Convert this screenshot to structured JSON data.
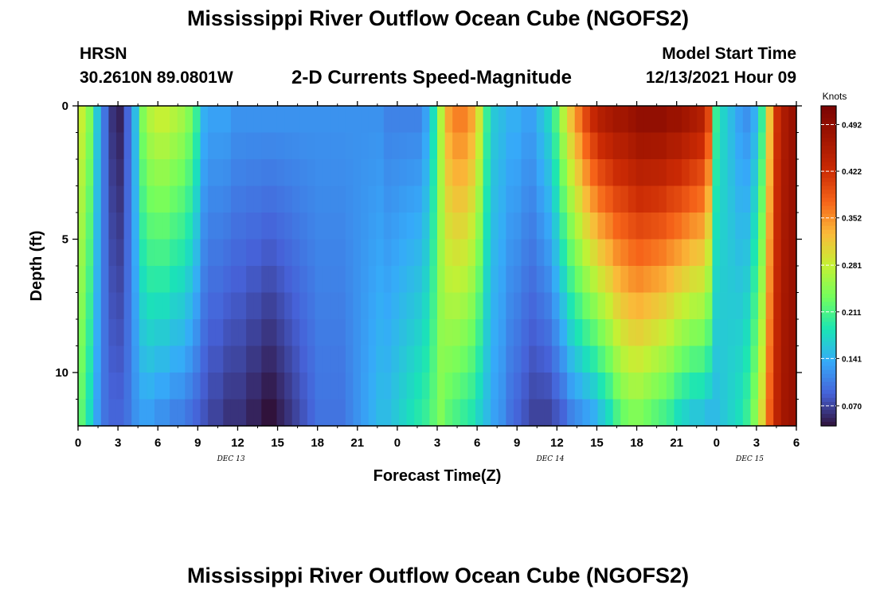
{
  "header": {
    "title": "Mississippi River Outflow Ocean Cube (NGOFS2)",
    "station": "HRSN",
    "latlon": "30.2610N  89.0801W",
    "subtitle": "2-D Currents Speed-Magnitude",
    "model_start_label": "Model Start Time",
    "model_start_value": "12/13/2021 Hour 09"
  },
  "footer": {
    "title": "Mississippi River Outflow Ocean Cube (NGOFS2)"
  },
  "chart_data": {
    "type": "heatmap",
    "title": "2-D Currents Speed-Magnitude",
    "xlabel": "Forecast Time(Z)",
    "ylabel": "Depth (ft)",
    "x_hours": [
      0,
      54
    ],
    "y_depth": [
      0,
      12
    ],
    "x_tick_labels": [
      "0",
      "3",
      "6",
      "9",
      "12",
      "15",
      "18",
      "21",
      "0",
      "3",
      "6",
      "9",
      "12",
      "15",
      "18",
      "21",
      "0",
      "3",
      "6"
    ],
    "y_tick_labels": [
      "0",
      "5",
      "10"
    ],
    "y_tick_values": [
      0,
      5,
      10
    ],
    "date_labels": [
      {
        "text": "DEC 13",
        "hour": 11.5
      },
      {
        "text": "DEC 14",
        "hour": 35.5
      },
      {
        "text": "DEC 15",
        "hour": 50.5
      }
    ],
    "colorbar": {
      "unit": "Knots",
      "min": 0.04,
      "max": 0.52,
      "tick_values": [
        0.07,
        0.141,
        0.211,
        0.281,
        0.352,
        0.422,
        0.492
      ],
      "tick_labels": [
        "0.070",
        "0.141",
        "0.211",
        "0.281",
        "0.352",
        "0.422",
        "0.492"
      ]
    },
    "surface_speed_knots": [
      0.28,
      0.24,
      0.16,
      0.1,
      0.06,
      0.05,
      0.09,
      0.15,
      0.24,
      0.27,
      0.28,
      0.28,
      0.27,
      0.26,
      0.24,
      0.2,
      0.14,
      0.13,
      0.13,
      0.13,
      0.12,
      0.12,
      0.12,
      0.12,
      0.12,
      0.12,
      0.12,
      0.12,
      0.12,
      0.12,
      0.12,
      0.12,
      0.12,
      0.12,
      0.12,
      0.12,
      0.12,
      0.12,
      0.12,
      0.12,
      0.11,
      0.11,
      0.11,
      0.11,
      0.11,
      0.13,
      0.18,
      0.27,
      0.34,
      0.36,
      0.36,
      0.34,
      0.29,
      0.2,
      0.16,
      0.15,
      0.14,
      0.14,
      0.13,
      0.13,
      0.15,
      0.17,
      0.21,
      0.27,
      0.32,
      0.36,
      0.4,
      0.43,
      0.45,
      0.46,
      0.47,
      0.47,
      0.48,
      0.49,
      0.49,
      0.49,
      0.49,
      0.48,
      0.48,
      0.47,
      0.46,
      0.45,
      0.4,
      0.2,
      0.17,
      0.15,
      0.13,
      0.12,
      0.14,
      0.2,
      0.32,
      0.42,
      0.46,
      0.48
    ],
    "bottom_speed_knots": [
      0.22,
      0.18,
      0.13,
      0.1,
      0.09,
      0.09,
      0.1,
      0.12,
      0.13,
      0.13,
      0.12,
      0.12,
      0.11,
      0.11,
      0.1,
      0.09,
      0.08,
      0.07,
      0.07,
      0.06,
      0.06,
      0.06,
      0.05,
      0.05,
      0.04,
      0.04,
      0.05,
      0.06,
      0.07,
      0.08,
      0.09,
      0.1,
      0.1,
      0.1,
      0.1,
      0.11,
      0.12,
      0.13,
      0.14,
      0.15,
      0.15,
      0.16,
      0.17,
      0.18,
      0.19,
      0.2,
      0.22,
      0.24,
      0.22,
      0.21,
      0.2,
      0.19,
      0.17,
      0.15,
      0.13,
      0.12,
      0.1,
      0.09,
      0.08,
      0.07,
      0.07,
      0.07,
      0.08,
      0.09,
      0.11,
      0.12,
      0.13,
      0.14,
      0.16,
      0.18,
      0.21,
      0.23,
      0.24,
      0.24,
      0.23,
      0.22,
      0.21,
      0.2,
      0.18,
      0.17,
      0.16,
      0.16,
      0.15,
      0.15,
      0.16,
      0.17,
      0.18,
      0.2,
      0.24,
      0.3,
      0.38,
      0.44,
      0.47,
      0.48
    ]
  }
}
